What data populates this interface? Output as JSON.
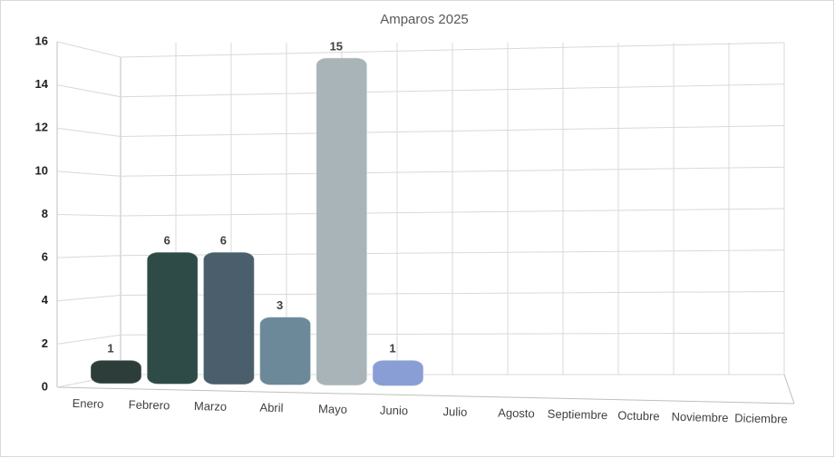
{
  "chart_data": {
    "type": "bar3d",
    "title": "Amparos 2025",
    "categories": [
      "Enero",
      "Febrero",
      "Marzo",
      "Abril",
      "Mayo",
      "Junio",
      "Julio",
      "Agosto",
      "Septiembre",
      "Octubre",
      "Noviembre",
      "Diciembre"
    ],
    "values": [
      1,
      6,
      6,
      3,
      15,
      1,
      null,
      null,
      null,
      null,
      null,
      null
    ],
    "colors": [
      "#2c3d3a",
      "#2e4b47",
      "#4a5f6b",
      "#6b8998",
      "#a9b4b8",
      "#8a9ed6",
      null,
      null,
      null,
      null,
      null,
      null
    ],
    "ylim": [
      0,
      16
    ],
    "yticks": [
      0,
      2,
      4,
      6,
      8,
      10,
      12,
      14,
      16
    ],
    "grid": true
  }
}
